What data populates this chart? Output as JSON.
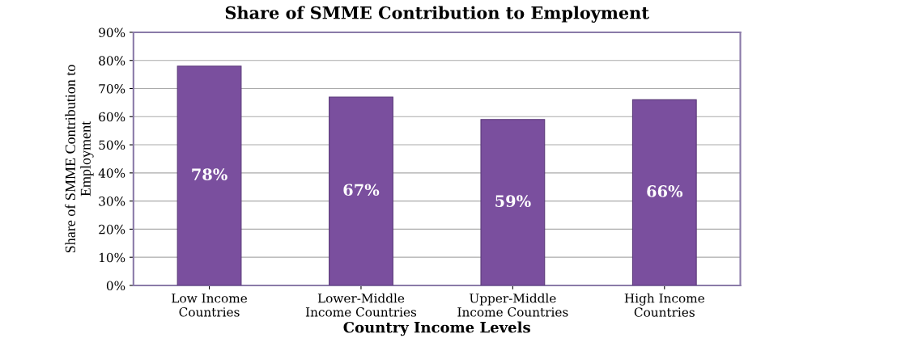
{
  "chart_data": {
    "type": "bar",
    "title": "Share of SMME Contribution to Employment",
    "xlabel": "Country Income Levels",
    "ylabel": "Share of SMME Contribution to\nEmployment",
    "categories": [
      "Low Income\nCountries",
      "Lower-Middle\nIncome Countries",
      "Upper-Middle\nIncome Countries",
      "High Income\nCountries"
    ],
    "values": [
      78,
      67,
      59,
      66
    ],
    "color": "#7a4f9e",
    "value_labels": [
      "78%",
      "67%",
      "59%",
      "66%"
    ],
    "ylim": [
      0,
      90
    ],
    "yticks": [
      {
        "value": 0,
        "label": "0%"
      },
      {
        "value": 10,
        "label": "10%"
      },
      {
        "value": 20,
        "label": "20%"
      },
      {
        "value": 30,
        "label": "30%"
      },
      {
        "value": 40,
        "label": "40%"
      },
      {
        "value": 50,
        "label": "50%"
      },
      {
        "value": 60,
        "label": "60%"
      },
      {
        "value": 70,
        "label": "70%"
      },
      {
        "value": 80,
        "label": "80%"
      },
      {
        "value": 90,
        "label": "90%"
      }
    ],
    "grid": "y",
    "legend": false
  }
}
